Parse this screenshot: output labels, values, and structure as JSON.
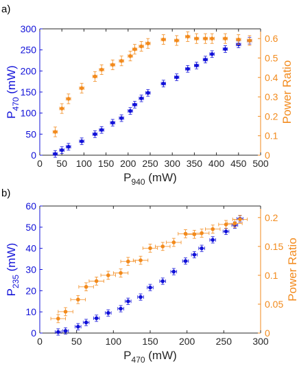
{
  "colors": {
    "blue": "#1010d8",
    "orange": "#f28a1c",
    "axis": "#262626"
  },
  "chart_data": [
    {
      "type": "scatter",
      "panel_label": "a)",
      "xlabel_main": "P",
      "xlabel_sub": "940",
      "xlabel_unit": " (mW)",
      "ylabel_main": "P",
      "ylabel_sub": "470",
      "ylabel_unit": " (mW)",
      "y2label": "Power Ratio",
      "xlim": [
        0,
        500
      ],
      "ylim": [
        0,
        300
      ],
      "y2lim": [
        0,
        0.65
      ],
      "xticks": [
        0,
        50,
        100,
        150,
        200,
        250,
        300,
        350,
        400,
        450,
        500
      ],
      "yticks": [
        0,
        50,
        100,
        150,
        200,
        250,
        300
      ],
      "y2ticks": [
        0,
        0.1,
        0.2,
        0.3,
        0.4,
        0.5,
        0.6
      ],
      "y2tick_labels": [
        "0",
        "0.1",
        "0.2",
        "0.3",
        "0.4",
        "0.5",
        "0.6"
      ],
      "series": [
        {
          "axis": "left",
          "color": "blue",
          "x": [
            35,
            50,
            65,
            95,
            125,
            140,
            165,
            185,
            205,
            215,
            230,
            245,
            280,
            310,
            335,
            355,
            375,
            390,
            420,
            450,
            475
          ],
          "y": [
            3,
            12,
            20,
            33,
            50,
            60,
            77,
            88,
            105,
            120,
            135,
            148,
            170,
            185,
            205,
            213,
            227,
            240,
            252,
            263,
            272
          ],
          "xerr": 5,
          "yerr": 8
        },
        {
          "axis": "right",
          "color": "orange",
          "x": [
            35,
            50,
            65,
            95,
            125,
            140,
            165,
            185,
            205,
            215,
            230,
            245,
            280,
            310,
            335,
            355,
            375,
            390,
            420,
            450,
            475
          ],
          "y": [
            0.12,
            0.24,
            0.29,
            0.345,
            0.405,
            0.44,
            0.465,
            0.485,
            0.51,
            0.545,
            0.56,
            0.575,
            0.595,
            0.59,
            0.61,
            0.6,
            0.6,
            0.6,
            0.6,
            0.595,
            0.59
          ],
          "xerr": 5,
          "yerr": 0.025
        }
      ]
    },
    {
      "type": "scatter",
      "panel_label": "b)",
      "xlabel_main": "P",
      "xlabel_sub": "470",
      "xlabel_unit": " (mW)",
      "ylabel_main": "P",
      "ylabel_sub": "235",
      "ylabel_unit": " (mW)",
      "y2label": "Power Ratio",
      "xlim": [
        0,
        300
      ],
      "ylim": [
        0,
        60
      ],
      "y2lim": [
        0,
        0.22
      ],
      "xticks": [
        0,
        50,
        100,
        150,
        200,
        250,
        300
      ],
      "yticks": [
        0,
        10,
        20,
        30,
        40,
        50,
        60
      ],
      "y2ticks": [
        0,
        0.05,
        0.1,
        0.15,
        0.2
      ],
      "y2tick_labels": [
        "0",
        "0.05",
        "0.1",
        "0.15",
        "0.2"
      ],
      "series": [
        {
          "axis": "left",
          "color": "blue",
          "x": [
            25,
            35,
            52,
            63,
            77,
            93,
            110,
            120,
            137,
            150,
            167,
            182,
            198,
            210,
            220,
            235,
            253,
            265,
            272
          ],
          "y": [
            0.5,
            1,
            3,
            5,
            7,
            9.5,
            11.5,
            15,
            17,
            21.5,
            24.5,
            29,
            34,
            37,
            40,
            44,
            48,
            51,
            54
          ],
          "xerr": 4,
          "yerr": 1.5
        },
        {
          "axis": "right",
          "color": "orange",
          "x": [
            25,
            35,
            52,
            63,
            77,
            93,
            110,
            120,
            137,
            150,
            167,
            182,
            198,
            210,
            220,
            235,
            253,
            265,
            272
          ],
          "y": [
            0.025,
            0.037,
            0.058,
            0.08,
            0.09,
            0.1,
            0.104,
            0.124,
            0.126,
            0.147,
            0.15,
            0.157,
            0.172,
            0.171,
            0.173,
            0.18,
            0.188,
            0.19,
            0.197
          ],
          "xerr": 10,
          "yerr": 0.007
        }
      ]
    }
  ]
}
